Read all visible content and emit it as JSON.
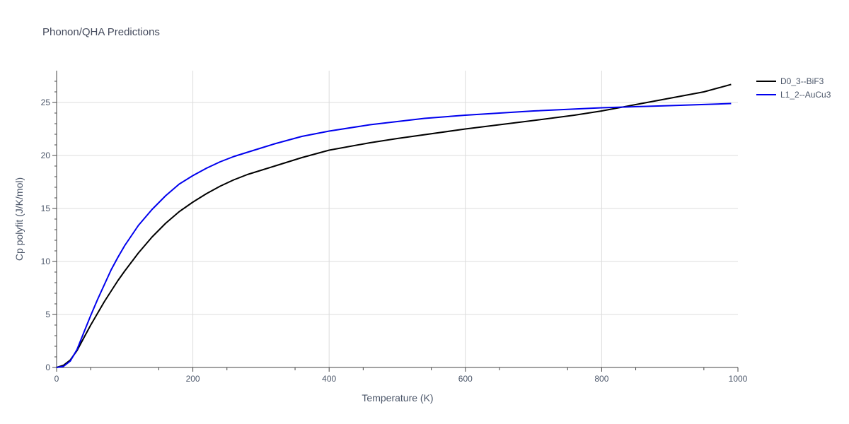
{
  "chart_data": {
    "type": "line",
    "title": "Phonon/QHA Predictions",
    "xlabel": "Temperature (K)",
    "ylabel": "Cp polyfit (J/K/mol)",
    "xlim": [
      0,
      1000
    ],
    "ylim": [
      0,
      28
    ],
    "xticks": [
      0,
      200,
      400,
      600,
      800,
      1000
    ],
    "xtick_labels": [
      "0",
      "200",
      "400",
      "600",
      "800",
      "1000"
    ],
    "yticks": [
      0,
      5,
      10,
      15,
      20,
      25
    ],
    "ytick_labels": [
      "0",
      "5",
      "10",
      "15",
      "20",
      "25"
    ],
    "grid": true,
    "legend_position": "top-right",
    "series": [
      {
        "name": "D0_3--BiF3",
        "color": "#000000",
        "x": [
          0,
          10,
          20,
          30,
          40,
          50,
          60,
          70,
          80,
          90,
          100,
          120,
          140,
          160,
          180,
          200,
          220,
          240,
          260,
          280,
          300,
          320,
          360,
          400,
          460,
          500,
          600,
          700,
          760,
          800,
          850,
          900,
          950,
          990
        ],
        "y": [
          0,
          0.2,
          0.7,
          1.6,
          2.8,
          4.0,
          5.1,
          6.2,
          7.2,
          8.2,
          9.1,
          10.8,
          12.3,
          13.6,
          14.7,
          15.6,
          16.4,
          17.1,
          17.7,
          18.2,
          18.6,
          19.0,
          19.8,
          20.5,
          21.2,
          21.6,
          22.5,
          23.3,
          23.8,
          24.2,
          24.8,
          25.4,
          26.0,
          26.7
        ]
      },
      {
        "name": "L1_2--AuCu3",
        "color": "#0000ee",
        "x": [
          0,
          10,
          20,
          30,
          40,
          50,
          60,
          70,
          80,
          90,
          100,
          120,
          140,
          160,
          180,
          200,
          220,
          240,
          260,
          280,
          300,
          320,
          360,
          400,
          460,
          500,
          540,
          600,
          700,
          800,
          900,
          990
        ],
        "y": [
          0,
          0.1,
          0.6,
          1.7,
          3.3,
          4.9,
          6.4,
          7.8,
          9.2,
          10.4,
          11.5,
          13.4,
          14.9,
          16.2,
          17.3,
          18.1,
          18.8,
          19.4,
          19.9,
          20.3,
          20.7,
          21.1,
          21.8,
          22.3,
          22.9,
          23.2,
          23.5,
          23.8,
          24.2,
          24.5,
          24.7,
          24.9
        ]
      }
    ]
  }
}
